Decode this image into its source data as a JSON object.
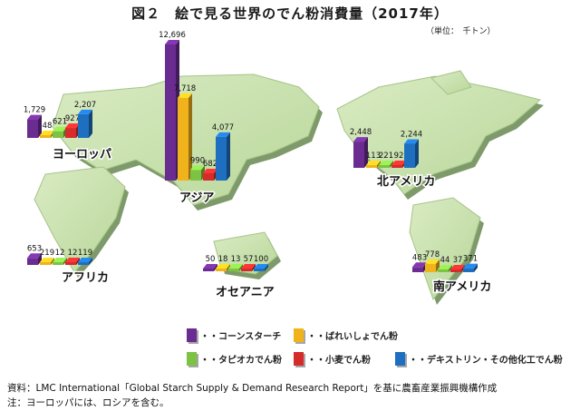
{
  "title": "図２　絵で見る世界のでん粉消費量（2017年）",
  "unit": "（単位：　千トン）",
  "chart_data": {
    "type": "bar",
    "series_names": [
      "コーンスターチ",
      "ばれいしょでん粉",
      "タピオカでん粉",
      "小麦でん粉",
      "デキストリン・その他化工でん粉"
    ],
    "colors": [
      "#6a2c91",
      "#f1b31c",
      "#7dc242",
      "#d52b2b",
      "#1e6fc0"
    ],
    "groups": [
      {
        "region": "ヨーロッパ",
        "values": [
          1729,
          48,
          621,
          927,
          2207
        ],
        "labels": [
          "1,729",
          "48",
          "621",
          "927",
          "2,207"
        ]
      },
      {
        "region": "アジア",
        "values": [
          12696,
          7718,
          990,
          682,
          4077
        ],
        "labels": [
          "12,696",
          "7,718",
          "990",
          "682",
          "4,077"
        ]
      },
      {
        "region": "北アメリカ",
        "values": [
          2448,
          113,
          221,
          92,
          2244
        ],
        "labels": [
          "2,448",
          "113",
          "221",
          "92",
          "2,244"
        ]
      },
      {
        "region": "アフリカ",
        "values": [
          653,
          219,
          12,
          12,
          119
        ],
        "labels": [
          "653",
          "219",
          "12",
          "12",
          "119"
        ]
      },
      {
        "region": "オセアニア",
        "values": [
          50,
          18,
          13,
          57,
          100
        ],
        "labels": [
          "50",
          "18",
          "13",
          "57",
          "100"
        ]
      },
      {
        "region": "南アメリカ",
        "values": [
          483,
          778,
          44,
          37,
          371
        ],
        "labels": [
          "483",
          "778",
          "44",
          "37",
          "371"
        ]
      }
    ]
  },
  "legend": [
    {
      "label": "・・コーンスターチ",
      "color": "#6a2c91"
    },
    {
      "label": "・・ばれいしょでん粉",
      "color": "#f1b31c"
    },
    {
      "label": "・・タピオカでん粉",
      "color": "#7dc242"
    },
    {
      "label": "・・小麦でん粉",
      "color": "#d52b2b"
    },
    {
      "label": "・・デキストリン・その他化工でん粉",
      "color": "#1e6fc0"
    }
  ],
  "notes": {
    "source": "資料：LMC International「Global Starch Supply & Demand Research Report」を基に農畜産業振興機構作成",
    "note": "注：ヨーロッパには、ロシアを含む。"
  }
}
